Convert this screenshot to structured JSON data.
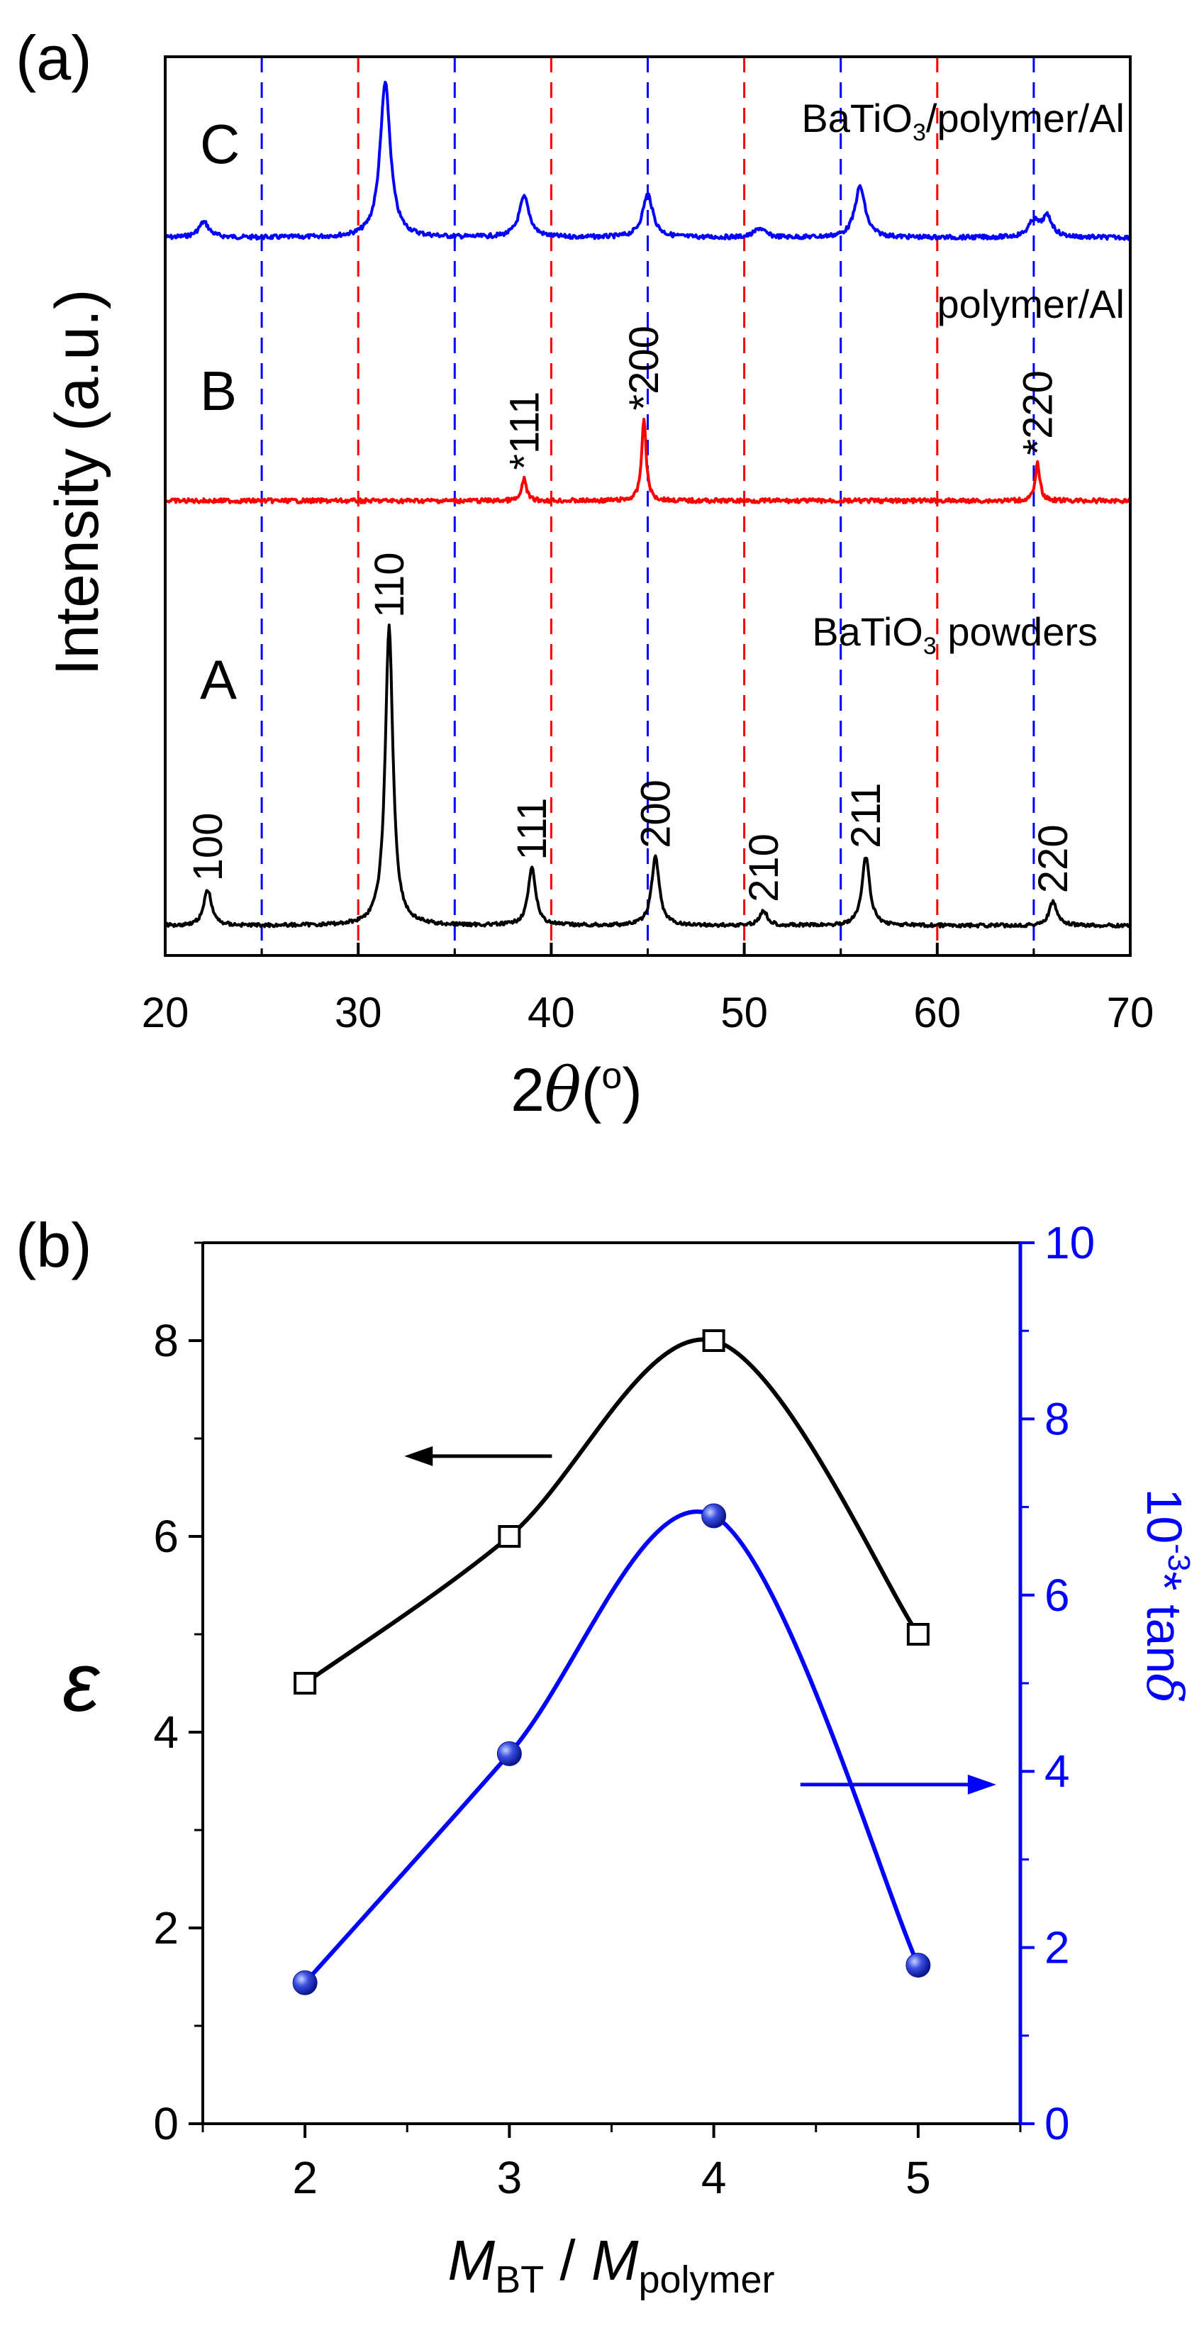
{
  "chart_data": [
    {
      "type": "line",
      "panel_label": "(a)",
      "xlabel": "2θ(°)",
      "ylabel": "Intensity (a.u.)",
      "xlim": [
        20,
        70
      ],
      "x_ticks": [
        "20",
        "30",
        "40",
        "50",
        "60",
        "70"
      ],
      "reference_lines": {
        "red_dashed_x": [
          30,
          40,
          50,
          60
        ],
        "blue_dashed_x": [
          25,
          35,
          45,
          55,
          65
        ],
        "colors": {
          "red": "#ff0000",
          "blue": "#0000ff"
        }
      },
      "series": [
        {
          "name": "BaTiO3/polymer/Al",
          "curve_label": "C",
          "color": "#0000ff",
          "baseline": 0.0,
          "peaks": [
            {
              "x": 22.0,
              "height": 0.1
            },
            {
              "x": 31.4,
              "height": 1.0
            },
            {
              "x": 38.6,
              "height": 0.26
            },
            {
              "x": 45.0,
              "height": 0.28
            },
            {
              "x": 50.8,
              "height": 0.06
            },
            {
              "x": 56.0,
              "height": 0.33
            },
            {
              "x": 65.0,
              "height": 0.1
            },
            {
              "x": 65.7,
              "height": 0.13
            }
          ]
        },
        {
          "name": "polymer/Al",
          "curve_label": "B",
          "color": "#ff0000",
          "baseline": 0.0,
          "peaks": [
            {
              "x": 38.6,
              "height": 0.15,
              "label": "*111"
            },
            {
              "x": 44.8,
              "height": 0.55,
              "label": "*200"
            },
            {
              "x": 65.2,
              "height": 0.25,
              "label": "*220"
            }
          ]
        },
        {
          "name": "BaTiO3 powders",
          "curve_label": "A",
          "color": "#000000",
          "baseline": 0.0,
          "peaks": [
            {
              "x": 22.2,
              "height": 0.12,
              "label": "100"
            },
            {
              "x": 31.6,
              "height": 1.0,
              "label": "110"
            },
            {
              "x": 39.0,
              "height": 0.19,
              "label": "111"
            },
            {
              "x": 45.4,
              "height": 0.23,
              "label": "200"
            },
            {
              "x": 51.0,
              "height": 0.05,
              "label": "210"
            },
            {
              "x": 56.3,
              "height": 0.23,
              "label": "211"
            },
            {
              "x": 66.0,
              "height": 0.08,
              "label": "220"
            }
          ]
        }
      ],
      "legend_text": {
        "C": [
          "BaTiO",
          "3",
          "/polymer/Al"
        ],
        "B": [
          "polymer/Al"
        ],
        "A": [
          "BaTiO",
          "3",
          " powders"
        ]
      }
    },
    {
      "type": "line",
      "panel_label": "(b)",
      "xlabel": "M_BT / M_polymer",
      "xlim": [
        1.5,
        5.5
      ],
      "x_ticks": [
        "2",
        "3",
        "4",
        "5"
      ],
      "y_left": {
        "label": "ε",
        "ylim": [
          0,
          9
        ],
        "ticks": [
          "0",
          "2",
          "4",
          "6",
          "8"
        ]
      },
      "y_right": {
        "label": "10^-3 * tanδ",
        "ylim": [
          0,
          10
        ],
        "ticks": [
          "0",
          "2",
          "4",
          "6",
          "8",
          "10"
        ],
        "color": "#0000ff"
      },
      "series": [
        {
          "name": "ε",
          "axis": "left",
          "marker": "open-square",
          "color": "#000000",
          "x": [
            2,
            3,
            4,
            5
          ],
          "y": [
            4.5,
            6.0,
            8.0,
            5.0
          ]
        },
        {
          "name": "10^-3 * tanδ",
          "axis": "right",
          "marker": "filled-sphere",
          "color": "#0000ff",
          "x": [
            2,
            3,
            4,
            5
          ],
          "y": [
            1.6,
            4.2,
            6.9,
            1.8
          ]
        }
      ],
      "arrows": [
        {
          "points_to": "left-axis",
          "color": "#000000"
        },
        {
          "points_to": "right-axis",
          "color": "#0000ff"
        }
      ]
    }
  ],
  "text": {
    "a_panel": "(a)",
    "b_panel": "(b)",
    "a_ylabel": "Intensity (a.u.)",
    "a_xlabel_main": "2",
    "a_xlabel_theta": "θ",
    "a_xlabel_open": "(",
    "a_xlabel_deg": "o",
    "a_xlabel_close": ")",
    "b_ylabel_left": "ε",
    "b_ylabel_right_base": "10",
    "b_ylabel_right_exp": "-3",
    "b_ylabel_right_rest": "* tan",
    "b_ylabel_right_delta": "δ",
    "b_xlabel_m1": "M",
    "b_xlabel_sub1": "BT",
    "b_xlabel_slash": " / ",
    "b_xlabel_m2": "M",
    "b_xlabel_sub2": "polymer"
  }
}
